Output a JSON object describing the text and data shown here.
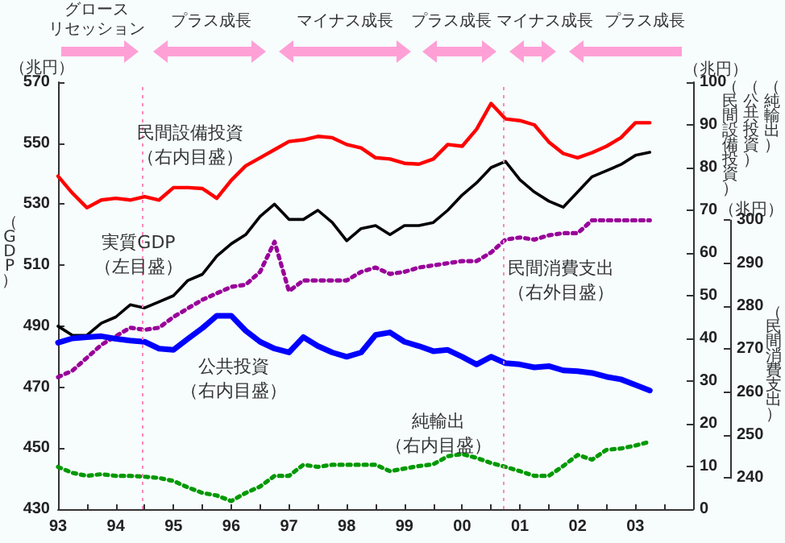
{
  "chart_data": {
    "type": "line",
    "x": [
      1993,
      1993.25,
      1993.5,
      1993.75,
      1994,
      1994.25,
      1994.5,
      1994.75,
      1995,
      1995.25,
      1995.5,
      1995.75,
      1996,
      1996.25,
      1996.5,
      1996.75,
      1997,
      1997.25,
      1997.5,
      1997.75,
      1998,
      1998.25,
      1998.5,
      1998.75,
      1999,
      1999.25,
      1999.5,
      1999.75,
      2000,
      2000.25,
      2000.5,
      2000.75,
      2001,
      2001.25,
      2001.5,
      2001.75,
      2002,
      2002.25,
      2002.5,
      2002.75,
      2003,
      2003.25
    ],
    "series": [
      {
        "name": "実質GDP",
        "color": "#000000",
        "line_style": "solid",
        "values": [
          490,
          487,
          487,
          491,
          493,
          497,
          496,
          498,
          500,
          505,
          507,
          513,
          517,
          520,
          526,
          530,
          525,
          525,
          528,
          524,
          518,
          522,
          523,
          520,
          523,
          523,
          524,
          528,
          533,
          537,
          542,
          544,
          538,
          534,
          531,
          529,
          534,
          539,
          541,
          543,
          546,
          547
        ]
      },
      {
        "name": "民間設備投資",
        "color": "#ff0000",
        "line_style": "solid",
        "axis": "y2",
        "values": [
          78,
          74,
          70.6,
          72.4,
          72.8,
          72.4,
          73.2,
          72.4,
          75.3,
          75.3,
          75.1,
          72.8,
          77,
          80.4,
          82.3,
          84.2,
          86.1,
          86.5,
          87.3,
          87,
          85.4,
          84.6,
          82.3,
          82,
          81,
          80.8,
          82,
          85.4,
          85,
          89,
          95,
          91.4,
          91,
          90,
          86,
          83.3,
          82.3,
          83.5,
          85,
          87,
          90.5,
          90.5
        ]
      },
      {
        "name": "民間消費支出",
        "color": "#990099",
        "line_style": "dotted",
        "axis": "y3",
        "values": [
          263.5,
          265,
          268,
          271,
          273,
          275,
          274.5,
          275,
          277.5,
          279.5,
          281.5,
          283,
          284.5,
          285,
          288,
          295,
          283.5,
          286,
          286,
          286,
          286,
          288,
          289,
          287.5,
          288,
          289,
          289.5,
          290,
          290.5,
          290.5,
          292.5,
          295.5,
          296,
          295.5,
          296.5,
          297,
          297,
          300,
          300,
          300,
          300,
          300
        ]
      },
      {
        "name": "公共投資",
        "color": "#0000ff",
        "line_style": "solid",
        "axis": "y2",
        "values": [
          39,
          40,
          40.3,
          40.5,
          39.9,
          39.5,
          39.2,
          37.6,
          37.3,
          39.9,
          42.4,
          45.3,
          45.3,
          41.8,
          39.2,
          37.6,
          36.7,
          40.3,
          38.2,
          36.7,
          35.7,
          36.7,
          40.8,
          41.4,
          39.2,
          38.2,
          37,
          37.3,
          35.7,
          33.9,
          35.7,
          34.2,
          33.9,
          33.2,
          33.5,
          32.5,
          32.3,
          31.9,
          31,
          30.4,
          29.1,
          27.8
        ]
      },
      {
        "name": "純輸出",
        "color": "#009900",
        "line_style": "dotted",
        "axis": "y2",
        "values": [
          9.9,
          8.5,
          7.8,
          8.2,
          7.8,
          7.8,
          7.6,
          7.3,
          6.6,
          5.1,
          3.8,
          3.2,
          1.9,
          3.8,
          5.3,
          7.8,
          7.8,
          10.4,
          9.9,
          10.4,
          10.4,
          10.4,
          10.4,
          8.9,
          9.5,
          10.1,
          10.5,
          12.4,
          12.9,
          12,
          10.8,
          9.9,
          8.9,
          7.8,
          7.8,
          10.1,
          12.7,
          11.6,
          13.9,
          14.2,
          14.9,
          15.8
        ]
      }
    ],
    "xlim": [
      1993,
      2004
    ],
    "xticks": [
      {
        "value": 1993,
        "label": "93"
      },
      {
        "value": 1993.5,
        "label": null
      },
      {
        "value": 1994,
        "label": "94"
      },
      {
        "value": 1994.5,
        "label": null
      },
      {
        "value": 1995,
        "label": "95"
      },
      {
        "value": 1995.5,
        "label": null
      },
      {
        "value": 1996,
        "label": "96"
      },
      {
        "value": 1996.5,
        "label": null
      },
      {
        "value": 1997,
        "label": "97"
      },
      {
        "value": 1997.5,
        "label": null
      },
      {
        "value": 1998,
        "label": "98"
      },
      {
        "value": 1998.5,
        "label": null
      },
      {
        "value": 1999,
        "label": "99"
      },
      {
        "value": 1999.5,
        "label": null
      },
      {
        "value": 2000,
        "label": "00"
      },
      {
        "value": 2000.5,
        "label": null
      },
      {
        "value": 2001,
        "label": "01"
      },
      {
        "value": 2001.5,
        "label": null
      },
      {
        "value": 2002,
        "label": "02"
      },
      {
        "value": 2002.5,
        "label": null
      },
      {
        "value": 2003,
        "label": "03"
      },
      {
        "value": 2003.5,
        "label": null
      }
    ],
    "ylim": [
      430,
      570
    ],
    "yticks": [
      430,
      450,
      470,
      490,
      510,
      530,
      550,
      570
    ],
    "y2lim": [
      0,
      100
    ],
    "y2ticks": [
      0,
      10,
      20,
      30,
      40,
      50,
      60,
      70,
      80,
      90,
      100
    ],
    "y3lim": [
      240,
      300
    ],
    "y3ticks": [
      240,
      250,
      260,
      270,
      280,
      290,
      300
    ],
    "ylabel": "（GDP）",
    "y2label": "（民間設備投資）",
    "y3label": "（民間消費支出）",
    "annotations": [
      "グロースリセッション",
      "プラス成長",
      "マイナス成長",
      "プラス成長",
      "マイナス成長",
      "プラス成長",
      "（兆円）",
      "（兆円）",
      "（兆円）",
      "（左目盛）",
      "（右内目盛）",
      "（右外目盛）",
      "（右内目盛）",
      "（右内目盛）",
      "（公共投資）",
      "（純輸出）"
    ],
    "ref_lines": [
      {
        "axis": "x",
        "value": 1994.45,
        "color": "#ff88bb",
        "line_style": "dotted"
      },
      {
        "axis": "x",
        "value": 2000.72,
        "color": "#ff88bb",
        "line_style": "dotted"
      }
    ],
    "marker": "none",
    "grid": false,
    "legend": false
  }
}
